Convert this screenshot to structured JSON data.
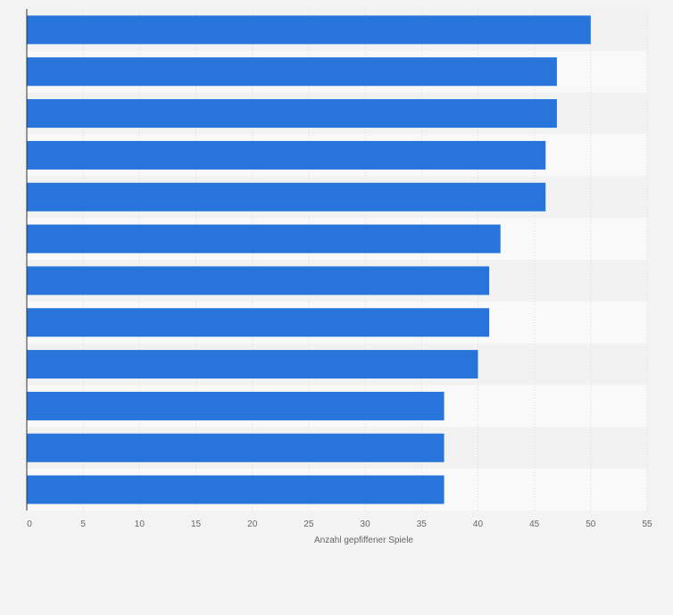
{
  "chart_data": {
    "type": "bar",
    "orientation": "horizontal",
    "categories": [
      "",
      "",
      "",
      "",
      "",
      "",
      "",
      "",
      "",
      "",
      "",
      ""
    ],
    "values": [
      50,
      47,
      47,
      46,
      46,
      42,
      41,
      41,
      40,
      37,
      37,
      37
    ],
    "xlabel": "Anzahl gepfiffener Spiele",
    "ylabel": "",
    "xlim": [
      0,
      55
    ],
    "xticks": [
      0,
      5,
      10,
      15,
      20,
      25,
      30,
      35,
      40,
      45,
      50,
      55
    ],
    "grid": true,
    "legend": "none",
    "colors": {
      "bar": "#2775db",
      "background": "#f3f3f3",
      "row_band_light": "#f9f9f9",
      "row_band_dark": "#f2f2f2",
      "grid": "#dcdcdc",
      "axis": "#333333",
      "text": "#666666"
    }
  }
}
